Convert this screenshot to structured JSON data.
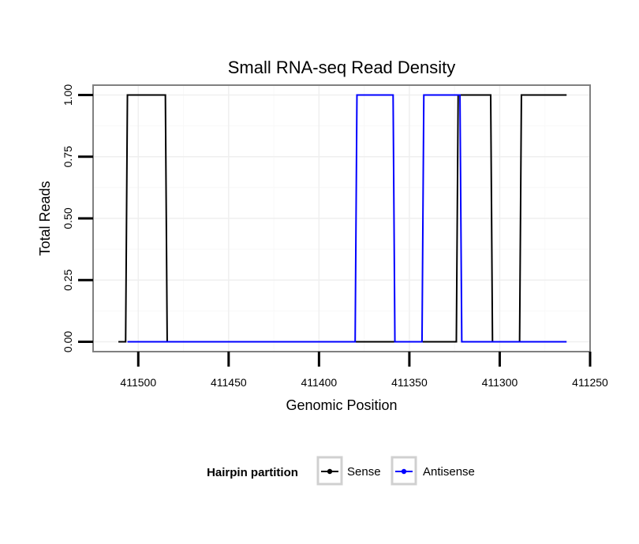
{
  "chart_data": {
    "type": "line",
    "title": "Small RNA-seq Read Density",
    "xlabel": "Genomic Position",
    "ylabel": "Total Reads",
    "x_reversed": true,
    "xlim": [
      411525,
      411250
    ],
    "ylim": [
      -0.04,
      1.04
    ],
    "x_ticks": [
      411500,
      411450,
      411400,
      411350,
      411300,
      411250
    ],
    "x_tick_labels": [
      "411500",
      "411450",
      "411400",
      "411350",
      "411300",
      "411250"
    ],
    "y_ticks": [
      0,
      0.25,
      0.5,
      0.75,
      1.0
    ],
    "y_tick_labels": [
      "0.00",
      "0.25",
      "0.50",
      "0.75",
      "1.00"
    ],
    "grid": true,
    "legend": {
      "title": "Hairpin partition",
      "position": "bottom"
    },
    "series": [
      {
        "name": "Sense",
        "color": "#000000",
        "points": [
          [
            411511,
            0
          ],
          [
            411507,
            0
          ],
          [
            411506,
            1
          ],
          [
            411485,
            1
          ],
          [
            411484,
            0
          ],
          [
            411324,
            0
          ],
          [
            411323,
            1
          ],
          [
            411305,
            1
          ],
          [
            411304,
            0
          ],
          [
            411289,
            0
          ],
          [
            411288,
            1
          ],
          [
            411263,
            1
          ]
        ]
      },
      {
        "name": "Antisense",
        "color": "#0000ff",
        "points": [
          [
            411506,
            0
          ],
          [
            411485,
            0
          ],
          [
            411380,
            0
          ],
          [
            411379,
            1
          ],
          [
            411359,
            1
          ],
          [
            411358,
            0
          ],
          [
            411343,
            0
          ],
          [
            411342,
            1
          ],
          [
            411322,
            1
          ],
          [
            411321,
            0
          ],
          [
            411263,
            0
          ]
        ]
      }
    ]
  }
}
